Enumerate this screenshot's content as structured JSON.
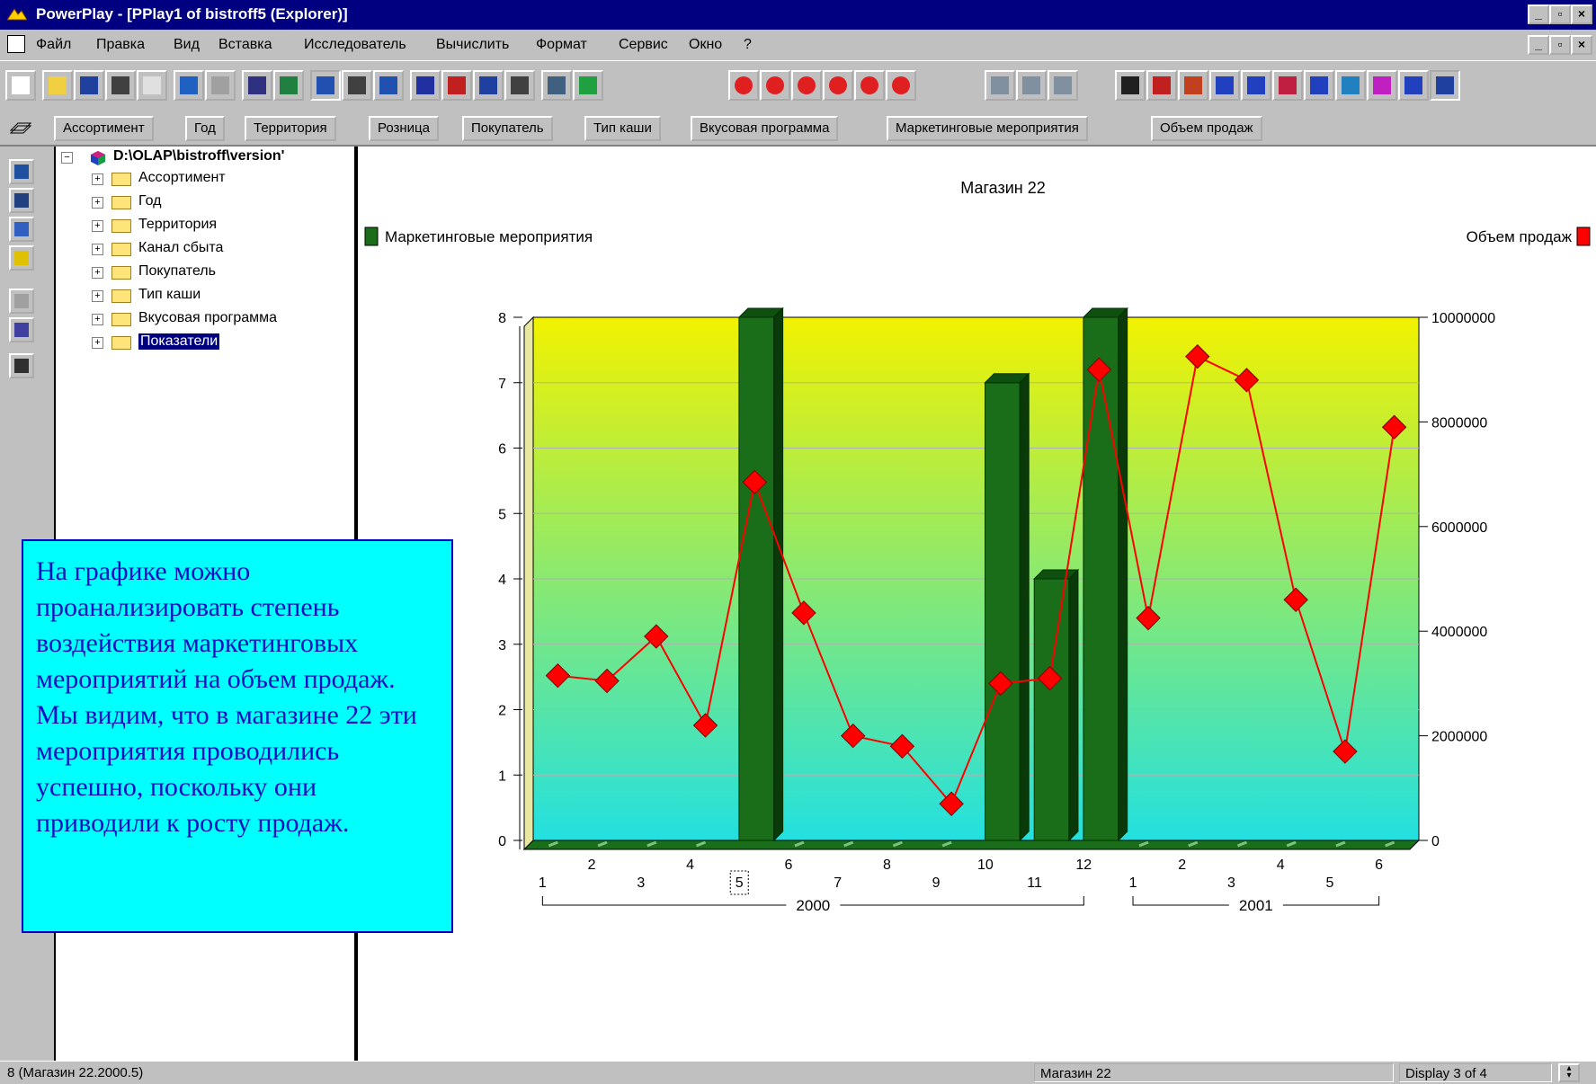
{
  "window": {
    "title": "PowerPlay - [PPlay1 of bistroff5 (Explorer)]",
    "buttons": [
      "_",
      "á",
      "x"
    ]
  },
  "menu": {
    "items": [
      "Файл",
      "Правка",
      "Вид",
      "Вставка",
      "Исследователь",
      "Вычислить",
      "Формат",
      "Сервис",
      "Окно",
      "?"
    ]
  },
  "toolbar": {
    "icons": [
      "new-icon",
      "open-icon",
      "save-icon",
      "print-icon",
      "preview-icon",
      "undo-icon",
      "redo-icon",
      "explore-icon",
      "drill-icon",
      "crosstab-icon",
      "add-icon",
      "swap-icon",
      "sort-icon",
      "rank-icon",
      "filter-icon",
      "list-icon",
      "report-icon",
      "exception-icon",
      "highlight-1-icon",
      "highlight-2-icon",
      "highlight-3-icon",
      "highlight-4-icon",
      "highlight-5-icon",
      "highlight-6-icon",
      "layout-1-icon",
      "layout-2-icon",
      "layout-3-icon",
      "display-table-icon",
      "display-pie-icon",
      "display-3dbar-icon",
      "display-bar-icon",
      "display-bar2-icon",
      "display-clustered-icon",
      "display-stacked-icon",
      "display-line-icon",
      "display-area-icon",
      "display-scatter-icon",
      "display-correlation-icon"
    ]
  },
  "dimensions": {
    "tabs": [
      "Ассортимент",
      "Год",
      "Территория",
      "Розница",
      "Покупатель",
      "Тип каши",
      "Вкусовая программа",
      "Маркетинговые мероприятия",
      "Объем продаж"
    ]
  },
  "tree": {
    "root": "D:\\OLAP\\bistroff\\version'",
    "items": [
      "Ассортимент",
      "Год",
      "Территория",
      "Канал сбыта",
      "Покупатель",
      "Тип каши",
      "Вкусовая программа",
      "Показатели"
    ],
    "selected_index": 7
  },
  "chart_data": {
    "type": "bar",
    "title": "Магазин 22",
    "categories": [
      "1",
      "2",
      "3",
      "4",
      "5",
      "6",
      "7",
      "8",
      "9",
      "10",
      "11",
      "12",
      "1",
      "2",
      "3",
      "4",
      "5",
      "6"
    ],
    "groups": [
      {
        "label": "2000",
        "count": 12
      },
      {
        "label": "2001",
        "count": 6
      }
    ],
    "highlighted_category_index": 4,
    "series": [
      {
        "name": "Маркетинговые мероприятия",
        "type": "bar",
        "axis": "left",
        "color": "#1a6e1a",
        "values": [
          0,
          0,
          0,
          0,
          8,
          0,
          0,
          0,
          0,
          7,
          4,
          8,
          0,
          0,
          0,
          0,
          0,
          0
        ]
      },
      {
        "name": "Объем продаж",
        "type": "line",
        "axis": "right",
        "color": "#ff0000",
        "values": [
          3150000,
          3050000,
          3900000,
          2200000,
          6850000,
          4350000,
          2000000,
          1800000,
          700000,
          3000000,
          3100000,
          9000000,
          4250000,
          9250000,
          8800000,
          4600000,
          1700000,
          7900000
        ]
      }
    ],
    "left_axis": {
      "min": 0,
      "max": 8,
      "ticks": [
        "0",
        "1",
        "2",
        "3",
        "4",
        "5",
        "6",
        "7",
        "8"
      ]
    },
    "right_axis": {
      "min": 0,
      "max": 10000000,
      "ticks": [
        "0",
        "2000000",
        "4000000",
        "6000000",
        "8000000",
        "10000000"
      ]
    },
    "grid": true,
    "legend_placement": "top"
  },
  "callout": {
    "text": "На графике можно проанализировать степень воздействия маркетинговых мероприятий на объем продаж. Мы видим, что в магазине 22 эти мероприятия проводились успешно, поскольку они приводили к росту продаж."
  },
  "status": {
    "left": "8 (Магазин 22.2000.5)",
    "middle": "Магазин 22",
    "right": "Display 3 of 4"
  },
  "colors": {
    "titlebar": "#000080",
    "bars": "#1a6e1a",
    "line": "#ff0000",
    "callout_bg": "#00ffff",
    "callout_text": "#1010c0",
    "plot_top": "#f2f200",
    "plot_bottom": "#22e0e0"
  }
}
